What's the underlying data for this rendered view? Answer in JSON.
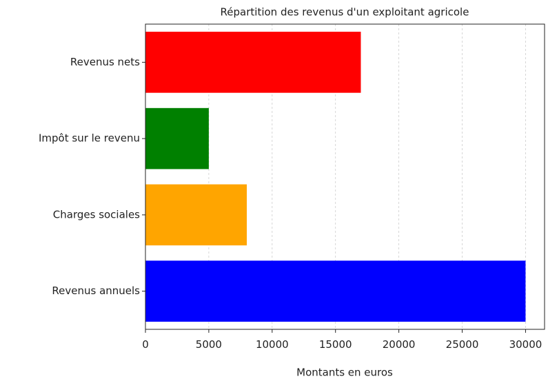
{
  "chart_data": {
    "type": "barh",
    "title": "Répartition des revenus d'un exploitant agricole",
    "xlabel": "Montants en euros",
    "categories": [
      "Revenus annuels",
      "Charges sociales",
      "Impôt sur le revenu",
      "Revenus nets"
    ],
    "values": [
      30000,
      8000,
      5000,
      17000
    ],
    "colors": [
      "#0000ff",
      "#ffa500",
      "#008000",
      "#ff0000"
    ],
    "xlim": [
      0,
      31500
    ],
    "xticks": [
      0,
      5000,
      10000,
      15000,
      20000,
      25000,
      30000
    ],
    "grid": true
  }
}
